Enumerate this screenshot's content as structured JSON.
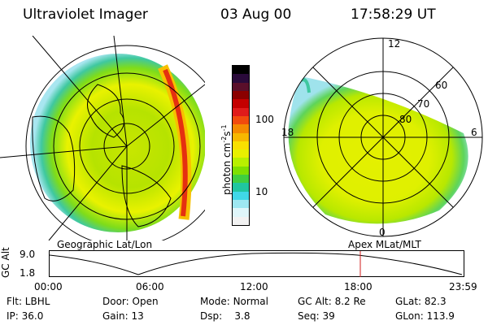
{
  "header": {
    "instrument": "Ultraviolet Imager",
    "date": "03 Aug 00",
    "time": "17:58:29 UT"
  },
  "geo_panel": {
    "caption": "Geographic Lat/Lon"
  },
  "colorbar": {
    "unit": "photon cm",
    "unit_sup1": "-2",
    "unit_mid": "s",
    "unit_sup2": "-1",
    "ticks": [
      "100",
      "10"
    ],
    "colors": [
      "#000000",
      "#2a0a3a",
      "#5a0f2a",
      "#8b0000",
      "#c40000",
      "#e01b1b",
      "#f24b0d",
      "#f58a00",
      "#f7b800",
      "#f9e000",
      "#e8f000",
      "#b8f000",
      "#7ee000",
      "#3fcf40",
      "#20c6a0",
      "#40d8e8",
      "#9ee8f2",
      "#dff6fa",
      "#f2f2f2"
    ]
  },
  "apex_panel": {
    "caption": "Apex MLat/MLT",
    "mlt_labels": {
      "top": "12",
      "left": "18",
      "right": "6",
      "bottom": "0"
    },
    "lat_labels": [
      "60",
      "70",
      "80"
    ]
  },
  "altitude_plot": {
    "ylabel": "GC Alt",
    "y_ticks": [
      "9.0",
      "1.8"
    ],
    "x_ticks": [
      "00:00",
      "06:00",
      "12:00",
      "18:00",
      "23:59"
    ],
    "marker_color": "#d21e1e"
  },
  "info": {
    "flt": "Flt: LBHL",
    "ip": "IP: 36.0",
    "door": "Door: Open",
    "gain": "Gain: 13",
    "mode_label": "Mode:",
    "mode_value": "Normal",
    "dsp_label": "Dsp:",
    "dsp_value": "3.8",
    "gcalt": "GC Alt: 8.2 Re",
    "seq": "Seq: 39",
    "glat": "GLat: 82.3",
    "glon": "GLon: 113.9"
  }
}
